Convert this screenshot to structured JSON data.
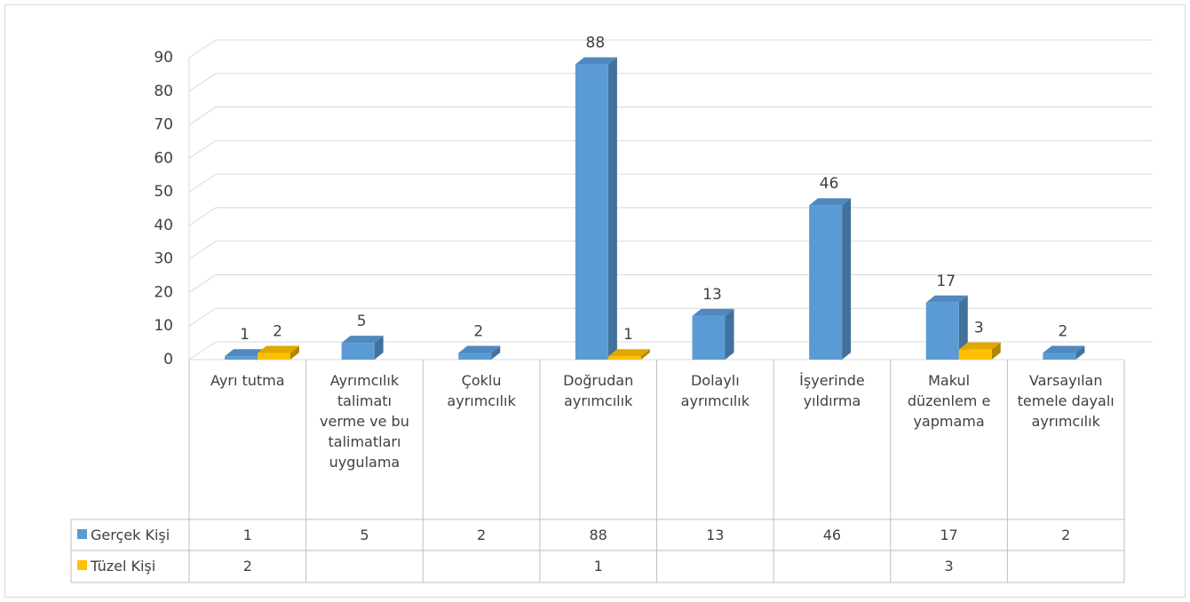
{
  "chart_data": {
    "type": "bar",
    "categories": [
      "Ayrı tutma",
      "Ayrımcılık talimatı verme ve bu talimatları uygulama",
      "Çoklu ayrımcılık",
      "Doğrudan ayrımcılık",
      "Dolaylı ayrımcılık",
      "İşyerinde yıldırma",
      "Makul düzenlem e yapmama",
      "Varsayılan temele dayalı ayrımcılık"
    ],
    "series": [
      {
        "name": "Gerçek Kişi",
        "color": "#5b9bd5",
        "values": [
          1,
          5,
          2,
          88,
          13,
          46,
          17,
          2
        ]
      },
      {
        "name": "Tüzel Kişi",
        "color": "#ffc000",
        "values": [
          2,
          null,
          null,
          1,
          null,
          null,
          3,
          null
        ]
      }
    ],
    "ylim": [
      0,
      90
    ],
    "yticks": [
      0,
      10,
      20,
      30,
      40,
      50,
      60,
      70,
      80,
      90
    ],
    "grid": true
  }
}
